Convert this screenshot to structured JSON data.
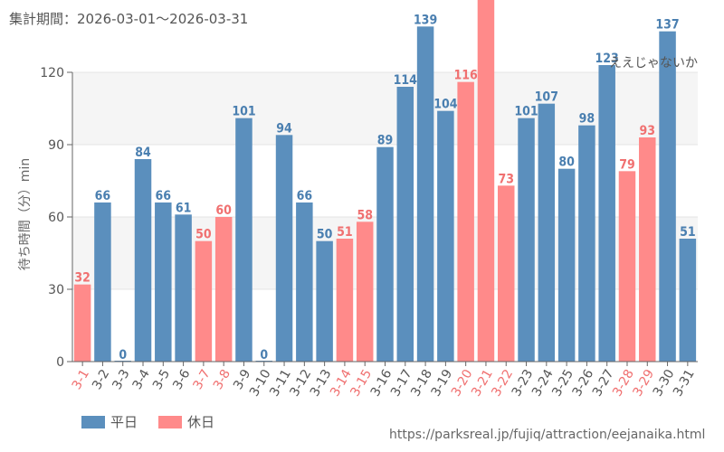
{
  "title": "集計期間：2026-03-01～2026-03-31",
  "footer_url": "https://parksreal.jp/fujiq/attraction/eejanaika.html",
  "chart_data": {
    "type": "bar",
    "ylabel": "待ち時間（分）min",
    "ylim": [
      0,
      120
    ],
    "yticks": [
      0,
      30,
      60,
      90,
      120
    ],
    "grid": true,
    "annotation": "ええじゃないか",
    "legend": [
      {
        "name": "平日",
        "color": "#5b8fbd"
      },
      {
        "name": "休日",
        "color": "#ff8a8a"
      }
    ],
    "colors": {
      "weekday": "#5b8fbd",
      "holiday": "#ff8a8a",
      "weekday_text": "#4a7fb0",
      "holiday_text": "#f07070"
    },
    "categories": [
      "3-1",
      "3-2",
      "3-3",
      "3-4",
      "3-5",
      "3-6",
      "3-7",
      "3-8",
      "3-9",
      "3-10",
      "3-11",
      "3-12",
      "3-13",
      "3-14",
      "3-15",
      "3-16",
      "3-17",
      "3-18",
      "3-19",
      "3-20",
      "3-21",
      "3-22",
      "3-23",
      "3-24",
      "3-25",
      "3-26",
      "3-27",
      "3-28",
      "3-29",
      "3-30",
      "3-31"
    ],
    "values": [
      32,
      66,
      0,
      84,
      66,
      61,
      50,
      60,
      101,
      0,
      94,
      66,
      50,
      51,
      58,
      89,
      114,
      139,
      104,
      116,
      null,
      73,
      101,
      107,
      80,
      98,
      123,
      79,
      93,
      137,
      51
    ],
    "value_labels": [
      "32",
      "66",
      "0",
      "84",
      "66",
      "61",
      "50",
      "60",
      "101",
      "0",
      "94",
      "66",
      "50",
      "51",
      "58",
      "89",
      "114",
      "139",
      "104",
      "116",
      "",
      "73",
      "101",
      "107",
      "80",
      "98",
      "123",
      "79",
      "93",
      "137",
      "51"
    ],
    "day_type": [
      "holiday",
      "weekday",
      "weekday",
      "weekday",
      "weekday",
      "weekday",
      "holiday",
      "holiday",
      "weekday",
      "weekday",
      "weekday",
      "weekday",
      "weekday",
      "holiday",
      "holiday",
      "weekday",
      "weekday",
      "weekday",
      "weekday",
      "holiday",
      "holiday",
      "holiday",
      "weekday",
      "weekday",
      "weekday",
      "weekday",
      "weekday",
      "holiday",
      "holiday",
      "weekday",
      "weekday"
    ]
  }
}
